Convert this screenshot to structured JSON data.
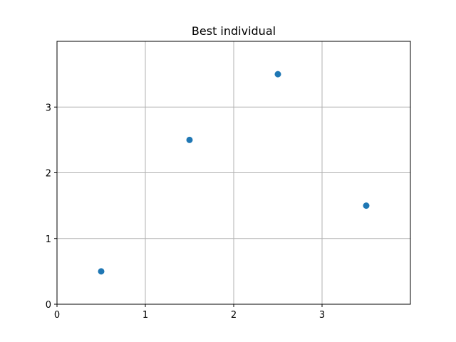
{
  "chart_data": {
    "type": "scatter",
    "title": "Best individual",
    "xlabel": "",
    "ylabel": "",
    "xlim": [
      0,
      4
    ],
    "ylim": [
      0,
      4
    ],
    "xticks": [
      0,
      1,
      2,
      3
    ],
    "yticks": [
      0,
      1,
      2,
      3
    ],
    "grid": true,
    "series": [
      {
        "points": [
          {
            "x": 0.5,
            "y": 0.5
          },
          {
            "x": 1.5,
            "y": 2.5
          },
          {
            "x": 2.5,
            "y": 3.5
          },
          {
            "x": 3.5,
            "y": 1.5
          }
        ],
        "color": "#1f77b4"
      }
    ]
  }
}
